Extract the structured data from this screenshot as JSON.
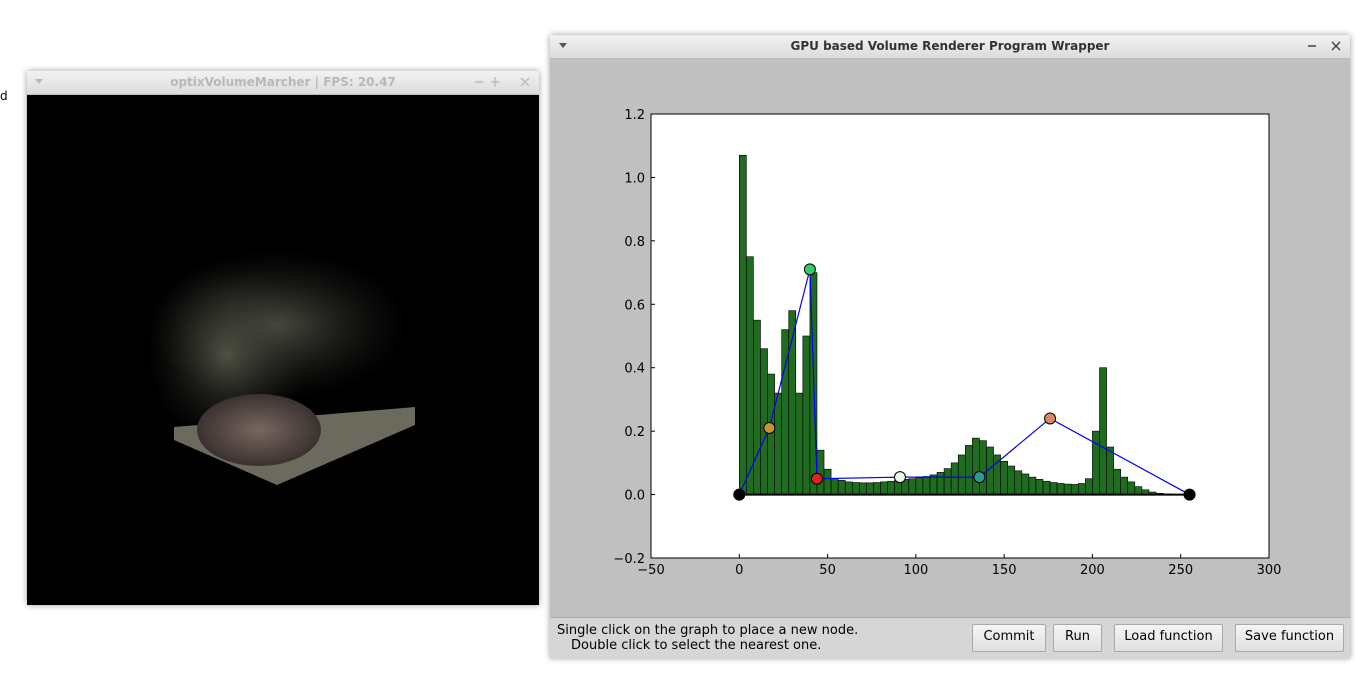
{
  "desktop": {
    "edge_text": "d"
  },
  "render_window": {
    "title": "optixVolumeMarcher | FPS:  20.47"
  },
  "main_window": {
    "title": "GPU based Volume Renderer Program Wrapper",
    "instructions": [
      "Single click on the graph to place a new node.",
      "Double click to select the nearest one."
    ],
    "buttons": [
      "Commit",
      "Run",
      "Load function",
      "Save function"
    ]
  },
  "chart_data": {
    "type": "histogram",
    "bins": [
      0,
      4,
      8,
      12,
      16,
      20,
      24,
      28,
      32,
      36,
      40,
      44,
      48,
      52,
      56,
      60,
      64,
      68,
      72,
      76,
      80,
      84,
      88,
      92,
      96,
      100,
      104,
      108,
      112,
      116,
      120,
      124,
      128,
      132,
      136,
      140,
      144,
      148,
      152,
      156,
      160,
      164,
      168,
      172,
      176,
      180,
      184,
      188,
      192,
      196,
      200,
      204,
      208,
      212,
      216,
      220,
      224,
      228,
      232,
      236,
      240,
      244,
      248,
      252,
      256
    ],
    "values": [
      1.07,
      0.75,
      0.55,
      0.46,
      0.38,
      0.32,
      0.52,
      0.58,
      0.32,
      0.5,
      0.7,
      0.14,
      0.08,
      0.05,
      0.045,
      0.04,
      0.038,
      0.037,
      0.037,
      0.038,
      0.04,
      0.042,
      0.045,
      0.048,
      0.05,
      0.053,
      0.057,
      0.062,
      0.07,
      0.082,
      0.1,
      0.125,
      0.155,
      0.178,
      0.17,
      0.15,
      0.125,
      0.105,
      0.09,
      0.075,
      0.065,
      0.055,
      0.048,
      0.042,
      0.038,
      0.035,
      0.033,
      0.032,
      0.035,
      0.05,
      0.2,
      0.4,
      0.15,
      0.08,
      0.055,
      0.04,
      0.025,
      0.015,
      0.008,
      0.004,
      0.002,
      0.001,
      0.0005,
      0
    ],
    "color": "#1f6b1f",
    "xlim": [
      -50,
      300
    ],
    "xticks": [
      {
        "value": -50,
        "label": "−50"
      },
      0,
      50,
      100,
      150,
      200,
      250,
      300
    ],
    "ylim": [
      -0.2,
      1.2
    ],
    "yticks": [
      {
        "value": -0.2,
        "label": "−0.2"
      },
      {
        "value": 0,
        "label": "0.0"
      },
      0.2,
      0.4,
      0.6,
      0.8,
      {
        "value": 1,
        "label": "1.0"
      },
      1.2
    ],
    "tf_nodes": {
      "x": [
        0,
        17,
        40,
        44,
        91,
        136,
        176,
        255
      ],
      "y": [
        0,
        0.21,
        0.71,
        0.05,
        0.055,
        0.055,
        0.24,
        0
      ],
      "colors": [
        "#000000",
        "#c8962a",
        "#33cc66",
        "#dd2222",
        "#eef5ee",
        "#2a9d8f",
        "#d98866",
        "#000000"
      ],
      "line_color": "#0000ff"
    }
  }
}
